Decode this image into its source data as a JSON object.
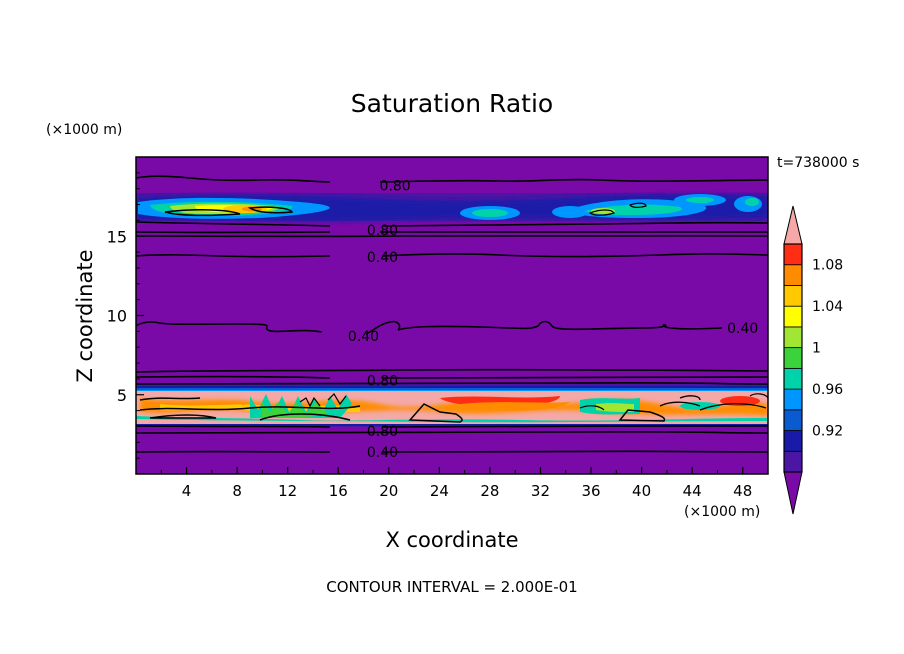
{
  "chart_data": {
    "type": "heatmap",
    "title": "Saturation Ratio",
    "xlabel": "X coordinate",
    "ylabel": "Z coordinate",
    "x_unit": "(×1000 m)",
    "z_unit": "(×1000 m)",
    "time_label": "t=738000 s",
    "footer": "CONTOUR INTERVAL = 2.000E-01",
    "xlim": [
      0,
      50
    ],
    "zlim": [
      0,
      20
    ],
    "x_ticks": [
      "4",
      "8",
      "12",
      "16",
      "20",
      "24",
      "28",
      "32",
      "36",
      "40",
      "44",
      "48"
    ],
    "z_ticks": [
      "5",
      "10",
      "15"
    ],
    "colorbar": {
      "colors": [
        "#7a0aa8",
        "#4b16a4",
        "#1a1aa8",
        "#0a5ad0",
        "#0096ff",
        "#00d2aa",
        "#3cd23c",
        "#a0e632",
        "#ffff00",
        "#ffc800",
        "#ff8c00",
        "#ff2d14",
        "#f4a8a8"
      ],
      "tick_labels": [
        "0.92",
        "0.96",
        "1",
        "1.04",
        "1.08"
      ],
      "extend": "both"
    },
    "contour_labels": [
      {
        "text": "0.80",
        "x": 20.5,
        "z": 18.2
      },
      {
        "text": "0.80",
        "x": 19.5,
        "z": 15.4
      },
      {
        "text": "0.40",
        "x": 19.5,
        "z": 13.7
      },
      {
        "text": "0.40",
        "x": 18.0,
        "z": 8.7
      },
      {
        "text": "0.40",
        "x": 48.0,
        "z": 9.2
      },
      {
        "text": "0.80",
        "x": 19.5,
        "z": 5.9
      },
      {
        "text": "0.80",
        "x": 19.5,
        "z": 2.7
      },
      {
        "text": "0.40",
        "x": 19.5,
        "z": 1.4
      }
    ],
    "notable_regions": [
      {
        "level": "supersaturated",
        "x_range": [
          0,
          50
        ],
        "z_range": [
          3.2,
          5.2
        ]
      },
      {
        "level": "near-saturated",
        "x_range": [
          0,
          50
        ],
        "z_range": [
          15.8,
          17.2
        ]
      }
    ]
  }
}
